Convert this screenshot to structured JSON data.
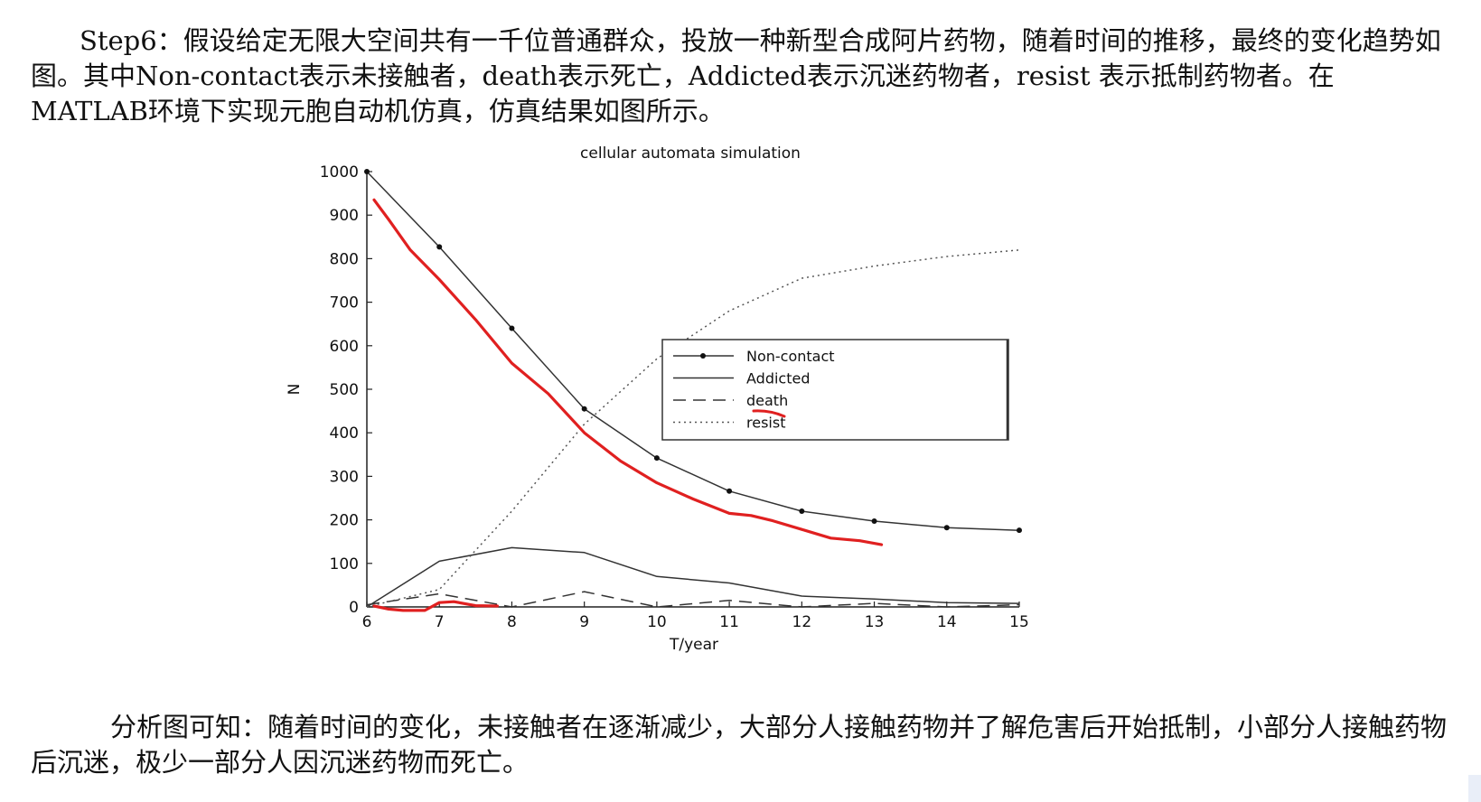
{
  "text": {
    "para1": "Step6：假设给定无限大空间共有一千位普通群众，投放一种新型合成阿片药物，随着时间的推移，最终的变化趋势如图。其中Non-contact表示未接触者，death表示死亡，Addicted表示沉迷药物者，resist 表示抵制药物者。在MATLAB环境下实现元胞自动机仿真，仿真结果如图所示。",
    "para2": "分析图可知：随着时间的变化，未接触者在逐渐减少，大部分人接触药物并了解危害后开始抵制，小部分人接触药物后沉迷，极少一部分人因沉迷药物而死亡。"
  },
  "chart_data": {
    "type": "line",
    "title": "cellular automata simulation",
    "xlabel": "T/year",
    "ylabel": "N",
    "xlim": [
      6,
      15
    ],
    "ylim": [
      0,
      1000
    ],
    "xticks": [
      "6",
      "7",
      "8",
      "9",
      "10",
      "11",
      "12",
      "13",
      "14",
      "15"
    ],
    "yticks": [
      "0",
      "100",
      "200",
      "300",
      "400",
      "500",
      "600",
      "700",
      "800",
      "900",
      "1000"
    ],
    "legend_position": "center-right",
    "series": [
      {
        "name": "Non-contact",
        "style": "solid-dot",
        "color": "#333333",
        "x": [
          6,
          7,
          8,
          9,
          10,
          11,
          12,
          13,
          14,
          15
        ],
        "y": [
          1000,
          827,
          640,
          455,
          342,
          266,
          220,
          197,
          182,
          176
        ]
      },
      {
        "name": "Addicted",
        "style": "solid",
        "color": "#333333",
        "x": [
          6,
          7,
          8,
          9,
          10,
          11,
          12,
          13,
          14,
          15
        ],
        "y": [
          0,
          105,
          136,
          125,
          70,
          55,
          25,
          18,
          10,
          8
        ]
      },
      {
        "name": "death",
        "style": "dashed",
        "color": "#333333",
        "x": [
          6,
          7,
          8,
          9,
          10,
          11,
          12,
          13,
          14,
          15
        ],
        "y": [
          5,
          30,
          0,
          35,
          0,
          15,
          0,
          8,
          0,
          5
        ]
      },
      {
        "name": "resist",
        "style": "dotted",
        "color": "#555555",
        "x": [
          6,
          7,
          8,
          9,
          10,
          11,
          12,
          13,
          14,
          15
        ],
        "y": [
          0,
          40,
          220,
          420,
          570,
          680,
          755,
          783,
          805,
          820
        ]
      }
    ],
    "annotations": [
      {
        "type": "hand-drawn",
        "color": "#e02020",
        "x": [
          6.1,
          6.3,
          6.6,
          7,
          7.5,
          8,
          8.5,
          9,
          9.5,
          10,
          10.5,
          11,
          11.3,
          11.6,
          12,
          12.4,
          12.8,
          13.1
        ],
        "y": [
          935,
          890,
          820,
          752,
          660,
          560,
          490,
          400,
          335,
          285,
          248,
          215,
          210,
          198,
          178,
          158,
          152,
          143
        ]
      },
      {
        "type": "hand-drawn",
        "color": "#e02020",
        "x": [
          6.1,
          6.3,
          6.5,
          6.8,
          7,
          7.2,
          7.5,
          7.8
        ],
        "y": [
          2,
          -5,
          -8,
          -8,
          10,
          12,
          3,
          2
        ]
      },
      {
        "type": "hand-drawn-legend-mark",
        "color": "#e02020",
        "near": "death"
      }
    ]
  }
}
